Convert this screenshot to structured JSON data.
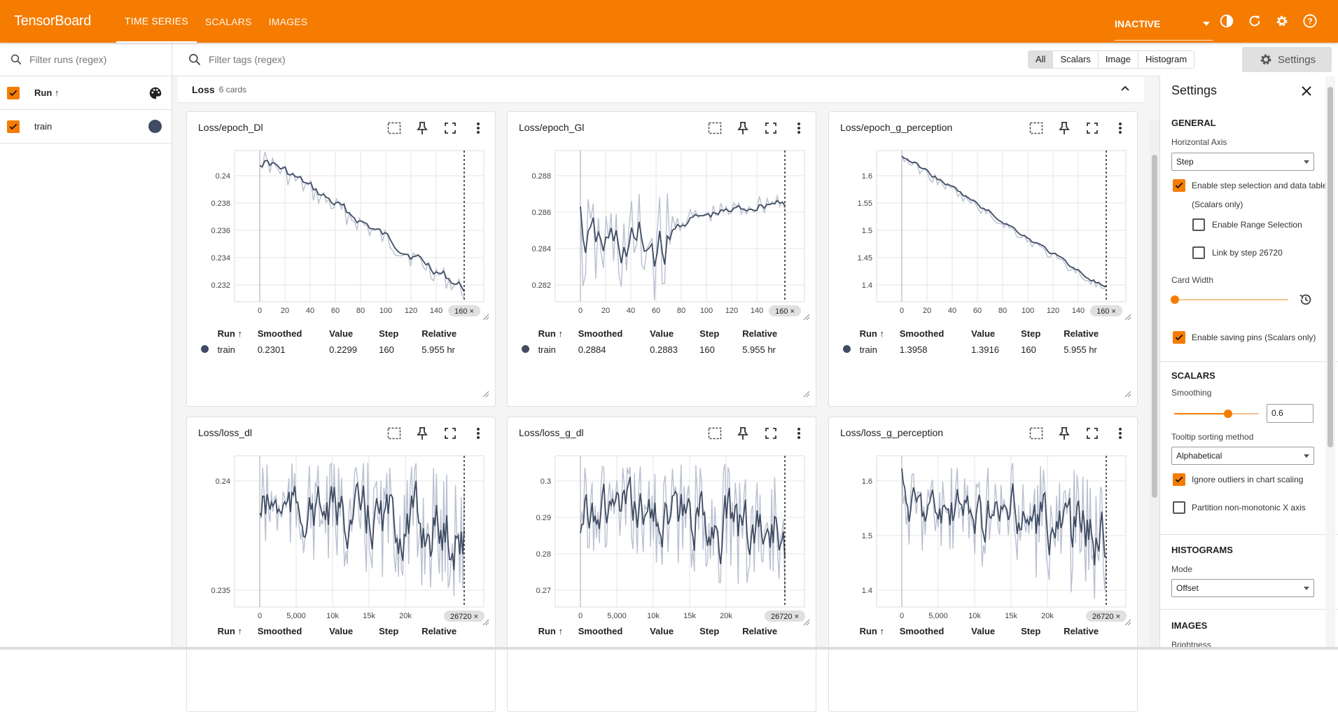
{
  "header": {
    "brand": "TensorBoard",
    "tabs": [
      "TIME SERIES",
      "SCALARS",
      "IMAGES"
    ],
    "active_tab": "TIME SERIES",
    "status": "INACTIVE"
  },
  "colors": {
    "accent": "#f57c00",
    "run": "#3f4c63",
    "raw_line": "#b9c0d0"
  },
  "runs": {
    "filter_placeholder": "Filter runs (regex)",
    "header_label": "Run ↑",
    "items": [
      {
        "name": "train"
      }
    ]
  },
  "toolbar": {
    "filter_placeholder": "Filter tags (regex)",
    "types": [
      "All",
      "Scalars",
      "Image",
      "Histogram"
    ],
    "selected_type": "All",
    "settings_label": "Settings"
  },
  "group": {
    "title": "Loss",
    "count": "6 cards"
  },
  "table_headers": [
    "Run ↑",
    "Smoothed",
    "Value",
    "Step",
    "Relative"
  ],
  "cards": [
    {
      "title": "Loss/epoch_Dl",
      "y_ticks": [
        "0.24",
        "0.238",
        "0.236",
        "0.234",
        "0.232"
      ],
      "x_ticks": [
        "0",
        "20",
        "40",
        "60",
        "80",
        "100",
        "120",
        "140"
      ],
      "step_chip": "160 ×",
      "row": {
        "run": "train",
        "smoothed": "0.2301",
        "value": "0.2299",
        "step": "160",
        "relative": "5.955 hr"
      }
    },
    {
      "title": "Loss/epoch_Gl",
      "y_ticks": [
        "0.288",
        "0.286",
        "0.284",
        "0.282"
      ],
      "x_ticks": [
        "0",
        "20",
        "40",
        "60",
        "80",
        "100",
        "120",
        "140"
      ],
      "step_chip": "160 ×",
      "row": {
        "run": "train",
        "smoothed": "0.2884",
        "value": "0.2883",
        "step": "160",
        "relative": "5.955 hr"
      }
    },
    {
      "title": "Loss/epoch_g_perception",
      "y_ticks": [
        "1.6",
        "1.55",
        "1.5",
        "1.45",
        "1.4"
      ],
      "x_ticks": [
        "0",
        "20",
        "40",
        "60",
        "80",
        "100",
        "120",
        "140"
      ],
      "step_chip": "160 ×",
      "row": {
        "run": "train",
        "smoothed": "1.3958",
        "value": "1.3916",
        "step": "160",
        "relative": "5.955 hr"
      }
    },
    {
      "title": "Loss/loss_dl",
      "y_ticks": [
        "0.24",
        "0.235"
      ],
      "x_ticks": [
        "0",
        "5,000",
        "10k",
        "15k",
        "20k"
      ],
      "step_chip": "26720 ×"
    },
    {
      "title": "Loss/loss_g_dl",
      "y_ticks": [
        "0.3",
        "0.29",
        "0.28",
        "0.27"
      ],
      "x_ticks": [
        "0",
        "5,000",
        "10k",
        "15k",
        "20k"
      ],
      "step_chip": "26720 ×"
    },
    {
      "title": "Loss/loss_g_perception",
      "y_ticks": [
        "1.6",
        "1.5",
        "1.4"
      ],
      "x_ticks": [
        "0",
        "5,000",
        "10k",
        "15k",
        "20k"
      ],
      "step_chip": "26720 ×"
    }
  ],
  "settings": {
    "title": "Settings",
    "general": "GENERAL",
    "horizontal_axis_label": "Horizontal Axis",
    "horizontal_axis_value": "Step",
    "enable_step_selection": "Enable step selection and data table",
    "scalars_only": "(Scalars only)",
    "enable_range_selection": "Enable Range Selection",
    "link_by_step": "Link by step 26720",
    "card_width": "Card Width",
    "enable_saving_pins": "Enable saving pins (Scalars only)",
    "scalars": "SCALARS",
    "smoothing_label": "Smoothing",
    "smoothing_value": "0.6",
    "tooltip_sort_label": "Tooltip sorting method",
    "tooltip_sort_value": "Alphabetical",
    "ignore_outliers": "Ignore outliers in chart scaling",
    "partition": "Partition non-monotonic X axis",
    "histograms": "HISTOGRAMS",
    "mode_label": "Mode",
    "mode_value": "Offset",
    "images": "IMAGES",
    "brightness": "Brightness"
  }
}
